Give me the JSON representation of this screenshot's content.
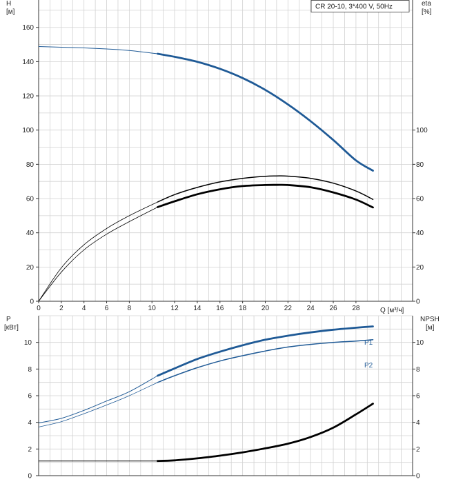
{
  "colors": {
    "grid": "#d2d2d2",
    "axis": "#333333",
    "head": "#1f5a96",
    "efficiency": "#000000",
    "power_p1": "#1f5a96",
    "power_p2": "#1f5a96",
    "npsh": "#000000"
  },
  "chart_data": [
    {
      "type": "line",
      "title": "CR 20-10, 3*400 V, 50Hz",
      "xlabel": "Q [м³/ч]",
      "y_left_label_line1": "H",
      "y_left_label_line2": "[м]",
      "y_right_label_line1": "eta",
      "y_right_label_line2": "[%]",
      "xlim": [
        0,
        33
      ],
      "ylim_left": [
        0,
        176
      ],
      "ylim_right": [
        0,
        176
      ],
      "x_ticks": [
        0,
        2,
        4,
        6,
        8,
        10,
        12,
        14,
        16,
        18,
        20,
        22,
        24,
        26,
        28
      ],
      "y_left_ticks": [
        0,
        20,
        40,
        60,
        80,
        100,
        120,
        140,
        160
      ],
      "y_right_ticks": [
        0,
        20,
        40,
        60,
        80,
        100
      ],
      "grid": true,
      "series": [
        {
          "key": "head",
          "x": [
            0,
            2,
            4,
            6,
            8,
            10.5,
            12,
            14,
            16,
            18,
            20,
            22,
            24,
            26,
            28,
            29.5
          ],
          "values": [
            148.8,
            148.4,
            148,
            147.4,
            146.5,
            144.6,
            142.8,
            139.9,
            135.8,
            130.4,
            123.5,
            115,
            105.2,
            94.2,
            82.3,
            76.3
          ],
          "thin_until_x": 10.5
        },
        {
          "key": "eta-upper",
          "x": [
            0,
            2,
            4,
            6,
            8,
            10.5,
            12,
            14,
            16,
            18,
            20,
            21,
            22,
            24,
            26,
            28,
            29.5
          ],
          "values": [
            0,
            19.5,
            33,
            42.5,
            50,
            58,
            62.3,
            66.5,
            69.7,
            71.8,
            73,
            73.2,
            73.1,
            71.8,
            69,
            64.4,
            59.5
          ],
          "thin_until_x": 10.5
        },
        {
          "key": "eta-lower",
          "x": [
            0,
            2,
            4,
            6,
            8,
            10.5,
            12,
            14,
            16,
            18,
            20,
            21,
            22,
            24,
            26,
            28,
            29.5
          ],
          "values": [
            0,
            17,
            30,
            39.2,
            46.5,
            55,
            58.4,
            62.5,
            65.4,
            67.3,
            67.9,
            68,
            67.9,
            66.6,
            63.6,
            59.4,
            54.8
          ],
          "thin_until_x": 10.5
        }
      ]
    },
    {
      "type": "line",
      "xlabel": "Q [м³/ч]",
      "y_left_label_line1": "P",
      "y_left_label_line2": "[кВт]",
      "y_right_label_line1": "NPSH",
      "y_right_label_line2": "[м]",
      "xlim": [
        0,
        33
      ],
      "ylim_left": [
        0,
        12
      ],
      "ylim_right": [
        0,
        12
      ],
      "y_left_ticks": [
        0,
        2,
        4,
        6,
        8,
        10
      ],
      "y_right_ticks": [
        0,
        2,
        4,
        6,
        8,
        10
      ],
      "grid": true,
      "series": [
        {
          "key": "p1",
          "name": "P1",
          "x": [
            0,
            2,
            4,
            6,
            8,
            10.5,
            12,
            14,
            16,
            18,
            20,
            22,
            24,
            26,
            28,
            29.5
          ],
          "values": [
            3.95,
            4.3,
            4.9,
            5.6,
            6.3,
            7.5,
            8.05,
            8.75,
            9.3,
            9.78,
            10.2,
            10.5,
            10.75,
            10.95,
            11.1,
            11.2
          ],
          "thin_until_x": 10.5
        },
        {
          "key": "p2",
          "name": "P2",
          "x": [
            0,
            2,
            4,
            6,
            8,
            10.5,
            12,
            14,
            16,
            18,
            20,
            22,
            24,
            26,
            28,
            29.5
          ],
          "values": [
            3.65,
            4.05,
            4.65,
            5.3,
            6.0,
            7.0,
            7.5,
            8.1,
            8.6,
            9.0,
            9.35,
            9.65,
            9.85,
            10.0,
            10.1,
            10.2
          ],
          "thin_until_x": 10.5
        },
        {
          "key": "npsh",
          "x": [
            0,
            2,
            4,
            6,
            8,
            10.5,
            12,
            14,
            16,
            18,
            20,
            22,
            24,
            26,
            28,
            29.5
          ],
          "values": [
            1.1,
            1.1,
            1.1,
            1.1,
            1.1,
            1.1,
            1.15,
            1.3,
            1.5,
            1.75,
            2.05,
            2.4,
            2.9,
            3.6,
            4.6,
            5.4
          ],
          "thin_until_x": 10.5
        }
      ]
    }
  ]
}
